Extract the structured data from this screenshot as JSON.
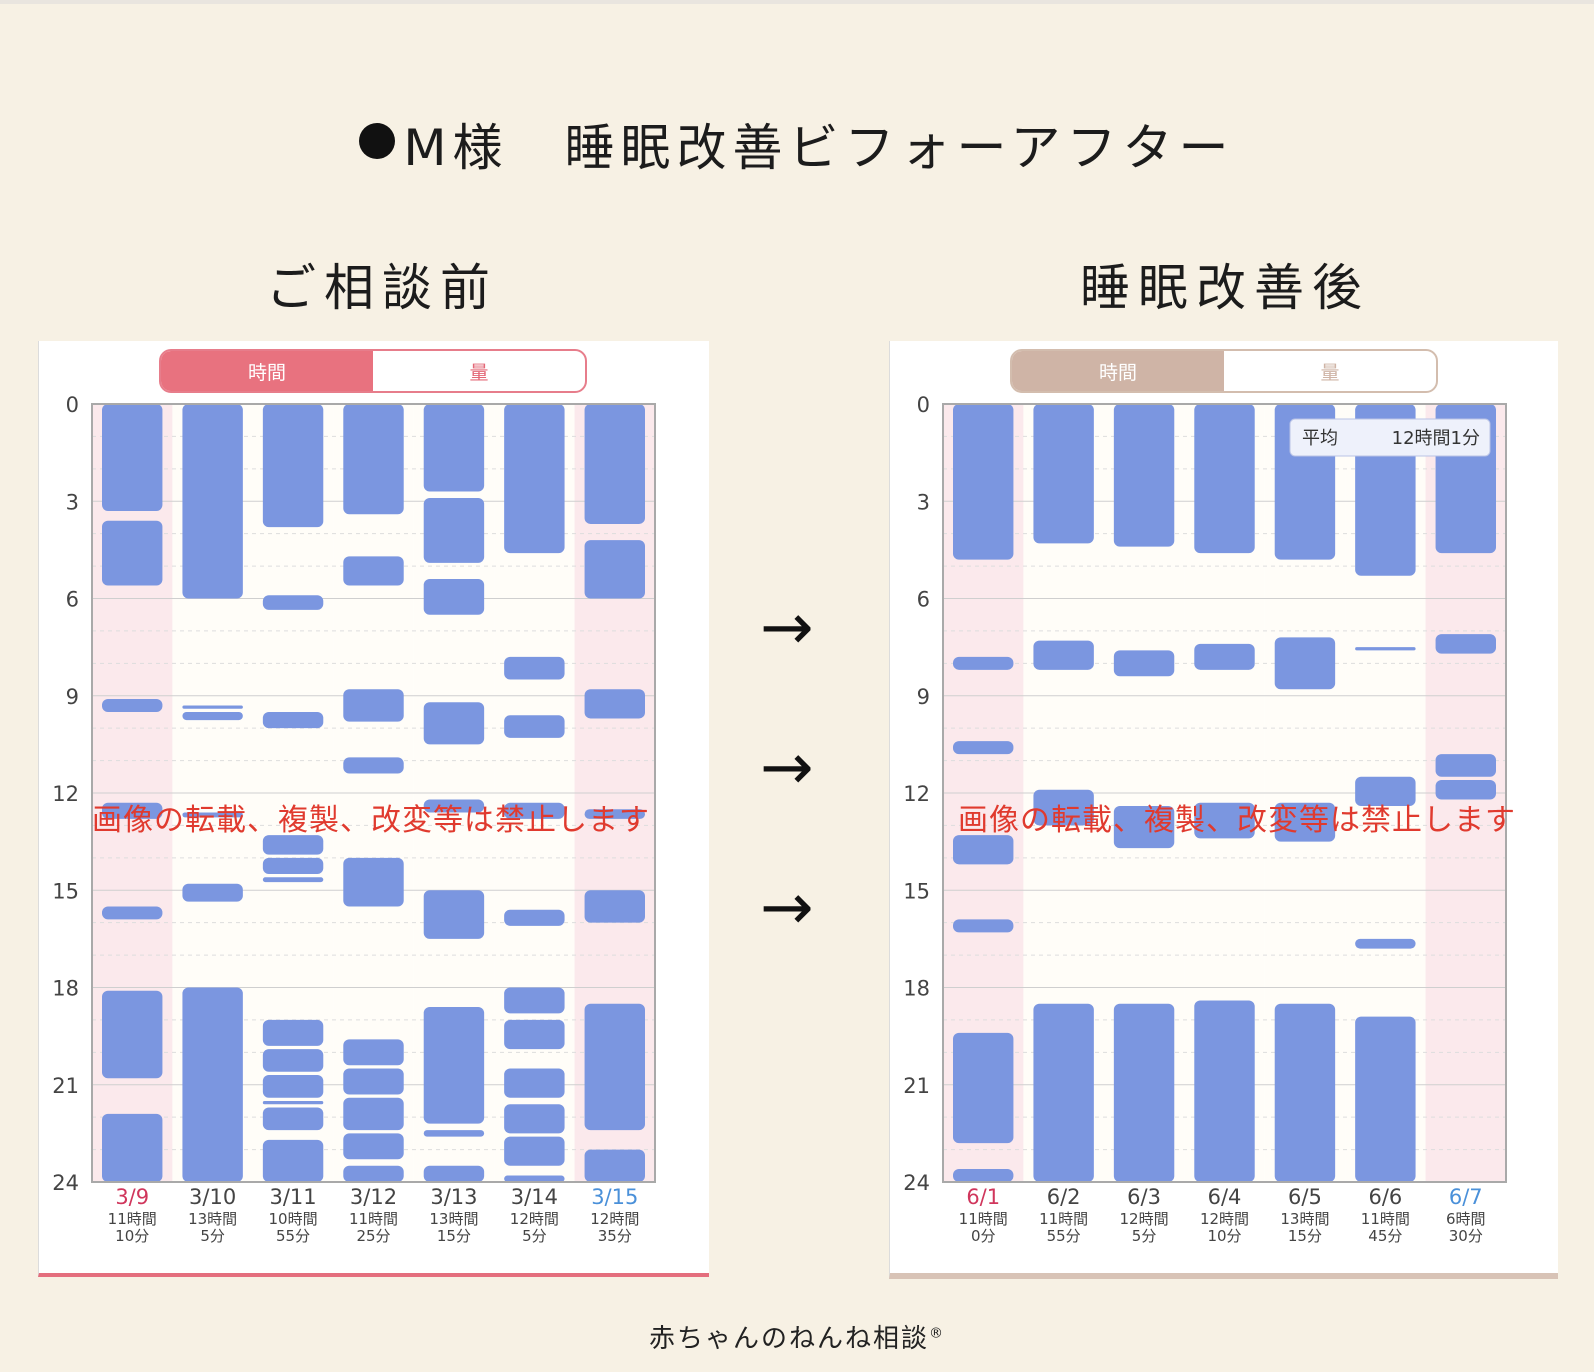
{
  "title": "M様　睡眠改善ビフォーアフター",
  "before_label": "ご相談前",
  "after_label": "睡眠改善後",
  "arrows": [
    "→",
    "→",
    "→"
  ],
  "watermark": "画像の転載、複製、改変等は禁止します",
  "footer": "赤ちゃんのねんね相談",
  "footer_mark": "®",
  "colors": {
    "background": "#f7f1e4",
    "sleep_bar": "#7b96e0",
    "weekend_col": "#fbe9ec",
    "weekday_col": "#fffdf8",
    "sat_label": "#4a90d9",
    "sun_label": "#d0365c",
    "watermark": "#e03a2e"
  },
  "chart_data": [
    {
      "type": "bar",
      "name": "before",
      "tabs": {
        "active": "時間",
        "inactive": "量"
      },
      "y_ticks": [
        0,
        3,
        6,
        9,
        12,
        15,
        18,
        21,
        24
      ],
      "ylim": [
        0,
        24
      ],
      "categories": [
        "3/9",
        "3/10",
        "3/11",
        "3/12",
        "3/13",
        "3/14",
        "3/15"
      ],
      "totals": [
        [
          "11時間",
          "10分"
        ],
        [
          "13時間",
          "5分"
        ],
        [
          "10時間",
          "55分"
        ],
        [
          "11時間",
          "25分"
        ],
        [
          "13時間",
          "15分"
        ],
        [
          "12時間",
          "5分"
        ],
        [
          "12時間",
          "35分"
        ]
      ],
      "column_type": [
        "sun",
        "wd",
        "wd",
        "wd",
        "wd",
        "wd",
        "sat"
      ],
      "sleep_intervals": [
        [
          [
            0,
            3.3
          ],
          [
            3.6,
            5.6
          ],
          [
            9.1,
            9.5
          ],
          [
            12.3,
            12.8
          ],
          [
            15.5,
            15.9
          ],
          [
            18.1,
            20.8
          ],
          [
            21.9,
            24.0
          ]
        ],
        [
          [
            0,
            6.0
          ],
          [
            9.3,
            9.4
          ],
          [
            9.5,
            9.75
          ],
          [
            12.6,
            12.75
          ],
          [
            14.8,
            15.35
          ],
          [
            18.0,
            24.0
          ]
        ],
        [
          [
            0,
            3.8
          ],
          [
            5.9,
            6.35
          ],
          [
            9.5,
            10.0
          ],
          [
            13.3,
            13.9
          ],
          [
            14.0,
            14.5
          ],
          [
            14.6,
            14.75
          ],
          [
            19.0,
            19.8
          ],
          [
            19.9,
            20.6
          ],
          [
            20.7,
            21.4
          ],
          [
            21.5,
            21.6
          ],
          [
            21.7,
            22.4
          ],
          [
            22.7,
            24.0
          ]
        ],
        [
          [
            0,
            3.4
          ],
          [
            4.7,
            5.6
          ],
          [
            8.8,
            9.8
          ],
          [
            10.9,
            11.4
          ],
          [
            14.0,
            15.5
          ],
          [
            19.6,
            20.4
          ],
          [
            20.5,
            21.3
          ],
          [
            21.4,
            22.4
          ],
          [
            22.5,
            23.3
          ],
          [
            23.5,
            24.0
          ]
        ],
        [
          [
            0,
            2.7
          ],
          [
            2.9,
            4.9
          ],
          [
            5.4,
            6.5
          ],
          [
            9.2,
            10.5
          ],
          [
            12.2,
            12.6
          ],
          [
            15.0,
            16.5
          ],
          [
            18.6,
            22.2
          ],
          [
            22.4,
            22.6
          ],
          [
            23.5,
            24.0
          ]
        ],
        [
          [
            0,
            4.6
          ],
          [
            7.8,
            8.5
          ],
          [
            9.6,
            10.3
          ],
          [
            12.3,
            12.8
          ],
          [
            15.6,
            16.1
          ],
          [
            18.0,
            18.8
          ],
          [
            19.0,
            19.9
          ],
          [
            20.5,
            21.4
          ],
          [
            21.6,
            22.5
          ],
          [
            22.6,
            23.5
          ],
          [
            23.8,
            24.0
          ]
        ],
        [
          [
            0,
            3.7
          ],
          [
            4.2,
            6.0
          ],
          [
            8.8,
            9.7
          ],
          [
            12.5,
            12.8
          ],
          [
            15.0,
            16.0
          ],
          [
            18.5,
            22.4
          ],
          [
            23.0,
            24.0
          ]
        ]
      ]
    },
    {
      "type": "bar",
      "name": "after",
      "tabs": {
        "active": "時間",
        "inactive": "量"
      },
      "average_label": "平均",
      "average_value": "12時間1分",
      "y_ticks": [
        0,
        3,
        6,
        9,
        12,
        15,
        18,
        21,
        24
      ],
      "ylim": [
        0,
        24
      ],
      "categories": [
        "6/1",
        "6/2",
        "6/3",
        "6/4",
        "6/5",
        "6/6",
        "6/7"
      ],
      "totals": [
        [
          "11時間",
          "0分"
        ],
        [
          "11時間",
          "55分"
        ],
        [
          "12時間",
          "5分"
        ],
        [
          "12時間",
          "10分"
        ],
        [
          "13時間",
          "15分"
        ],
        [
          "11時間",
          "45分"
        ],
        [
          "6時間",
          "30分"
        ]
      ],
      "column_type": [
        "sun",
        "wd",
        "wd",
        "wd",
        "wd",
        "wd",
        "sat"
      ],
      "sleep_intervals": [
        [
          [
            0,
            4.8
          ],
          [
            7.8,
            8.2
          ],
          [
            10.4,
            10.8
          ],
          [
            13.3,
            14.2
          ],
          [
            15.9,
            16.3
          ],
          [
            19.4,
            22.8
          ],
          [
            23.6,
            24.0
          ]
        ],
        [
          [
            0,
            4.3
          ],
          [
            7.3,
            8.2
          ],
          [
            11.9,
            13.0
          ],
          [
            18.5,
            24.0
          ]
        ],
        [
          [
            0,
            4.4
          ],
          [
            7.6,
            8.4
          ],
          [
            12.4,
            13.7
          ],
          [
            18.5,
            24.0
          ]
        ],
        [
          [
            0,
            4.6
          ],
          [
            7.4,
            8.2
          ],
          [
            12.3,
            13.4
          ],
          [
            18.4,
            24.0
          ]
        ],
        [
          [
            0,
            4.8
          ],
          [
            7.2,
            8.8
          ],
          [
            12.3,
            13.5
          ],
          [
            18.5,
            24.0
          ]
        ],
        [
          [
            0,
            5.3
          ],
          [
            7.5,
            7.6
          ],
          [
            11.5,
            12.4
          ],
          [
            16.5,
            16.8
          ],
          [
            18.9,
            24.0
          ]
        ],
        [
          [
            0,
            4.6
          ],
          [
            7.1,
            7.7
          ],
          [
            10.8,
            11.5
          ],
          [
            11.6,
            12.2
          ]
        ]
      ]
    }
  ]
}
